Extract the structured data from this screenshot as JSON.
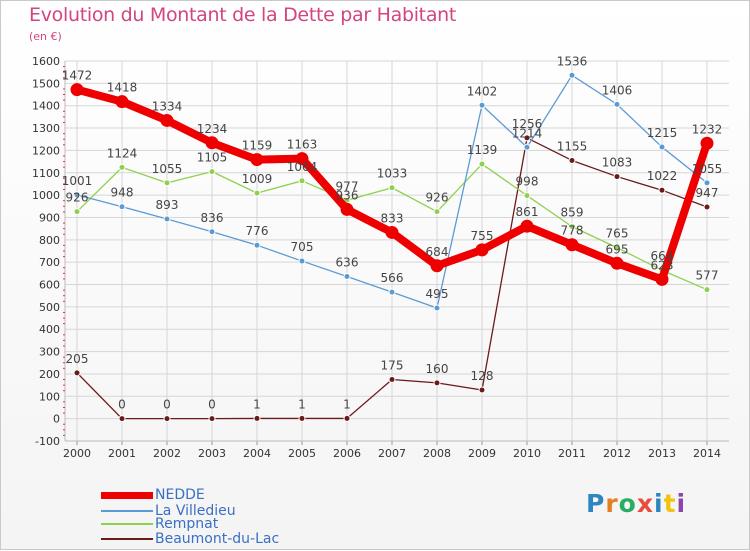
{
  "title": "Evolution du Montant de la Dette par Habitant",
  "subtitle": "(en €)",
  "logo_text": "Proxiti",
  "colors": {
    "title": "#d2457f",
    "legend_text": "#3a6fc4",
    "grid": "#d6d6d6"
  },
  "chart_data": {
    "type": "line",
    "title": "Evolution du Montant de la Dette par Habitant",
    "ylabel": "(en €)",
    "xlabel": "",
    "x": [
      "2000",
      "2001",
      "2002",
      "2003",
      "2004",
      "2005",
      "2006",
      "2007",
      "2008",
      "2009",
      "2010",
      "2011",
      "2012",
      "2013",
      "2014"
    ],
    "ylim": [
      -100,
      1600
    ],
    "yticks": [
      "-100",
      "0",
      "100",
      "200",
      "300",
      "400",
      "500",
      "600",
      "700",
      "800",
      "900",
      "1000",
      "1100",
      "1200",
      "1300",
      "1400",
      "1500",
      "1600"
    ],
    "grid": true,
    "legend_position": "bottom-left",
    "series": [
      {
        "name": "NEDDE",
        "color": "#ee0000",
        "values": [
          1472,
          1418,
          1334,
          1234,
          1159,
          1163,
          936,
          833,
          684,
          755,
          861,
          778,
          695,
          623,
          1232
        ],
        "labels": [
          "1472",
          "1418",
          "1334",
          "1234",
          "1159",
          "1163",
          "936",
          "833",
          "684",
          "755",
          "861",
          "778",
          "695",
          "623",
          "1232"
        ]
      },
      {
        "name": "La Villedieu",
        "color": "#5b9bd5",
        "values": [
          1001,
          948,
          893,
          836,
          776,
          705,
          636,
          566,
          495,
          1402,
          1214,
          1536,
          1406,
          1215,
          1055
        ],
        "labels": [
          "1001",
          "948",
          "893",
          "836",
          "776",
          "705",
          "636",
          "566",
          "495",
          "1402",
          "1214",
          "1536",
          "1406",
          "1215",
          "1055"
        ]
      },
      {
        "name": "Rempnat",
        "color": "#8fd14f",
        "values": [
          926,
          1124,
          1055,
          1105,
          1009,
          1064,
          977,
          1033,
          926,
          1139,
          998,
          859,
          765,
          664,
          577
        ],
        "labels": [
          "926",
          "1124",
          "1055",
          "1105",
          "1009",
          "1064",
          "977",
          "1033",
          "926",
          "1139",
          "998",
          "859",
          "765",
          "664",
          "577"
        ]
      },
      {
        "name": "Beaumont-du-Lac",
        "color": "#6b1a1a",
        "values": [
          205,
          0,
          0,
          0,
          1,
          1,
          1,
          175,
          160,
          128,
          1256,
          1155,
          1083,
          1022,
          947
        ],
        "labels": [
          "205",
          "0",
          "0",
          "0",
          "1",
          "1",
          "1",
          "175",
          "160",
          "128",
          "1256",
          "1155",
          "1083",
          "1022",
          "947"
        ]
      }
    ]
  }
}
